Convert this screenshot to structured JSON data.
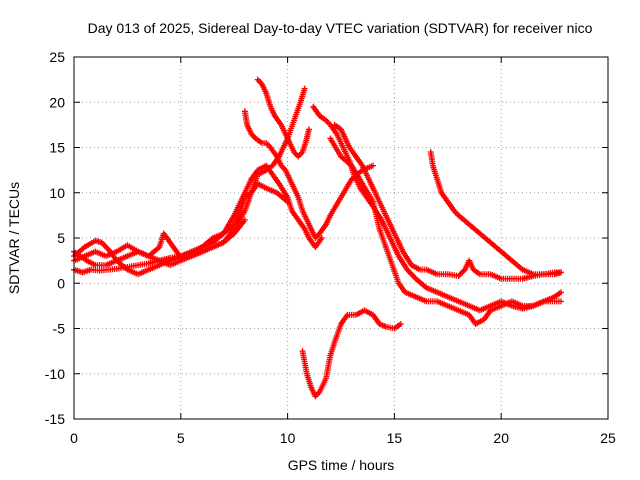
{
  "chart_data": {
    "type": "scatter",
    "title": "Day 013 of 2025, Sidereal Day-to-day VTEC variation (SDTVAR) for receiver nico",
    "xlabel": "GPS time / hours",
    "ylabel": "SDTVAR / TECUs",
    "xlim": [
      0,
      25
    ],
    "ylim": [
      -15,
      25
    ],
    "x_ticks": [
      0,
      5,
      10,
      15,
      20,
      25
    ],
    "y_ticks": [
      -15,
      -10,
      -5,
      0,
      5,
      10,
      15,
      20,
      25
    ],
    "x_tick_labels": [
      "0",
      "5",
      "10",
      "15",
      "20",
      "25"
    ],
    "y_tick_labels": [
      "-15",
      "-10",
      "-5",
      "0",
      "5",
      "10",
      "15",
      "20",
      "25"
    ],
    "grid": true,
    "marker": "plus",
    "color": "#ff0000",
    "series": [
      {
        "name": "s1",
        "points": [
          [
            0,
            3.0
          ],
          [
            0.5,
            4.0
          ],
          [
            1.0,
            4.7
          ],
          [
            1.3,
            4.5
          ],
          [
            1.7,
            3.5
          ],
          [
            2.0,
            2.5
          ],
          [
            2.5,
            1.5
          ],
          [
            3.0,
            1.0
          ],
          [
            3.5,
            1.5
          ],
          [
            4.0,
            2.0
          ],
          [
            4.5,
            2.5
          ],
          [
            5.0,
            3.0
          ],
          [
            5.5,
            3.2
          ],
          [
            6.0,
            4.0
          ],
          [
            6.5,
            5.0
          ],
          [
            7.0,
            5.5
          ],
          [
            7.5,
            6.5
          ],
          [
            7.8,
            8.0
          ],
          [
            8.0,
            9.5
          ],
          [
            8.3,
            10.0
          ],
          [
            8.6,
            12.0
          ],
          [
            9.0,
            12.5
          ],
          [
            9.3,
            13.0
          ],
          [
            9.6,
            14.0
          ],
          [
            10.0,
            16.0
          ],
          [
            10.3,
            18.0
          ],
          [
            10.6,
            20.0
          ],
          [
            10.8,
            21.5
          ]
        ]
      },
      {
        "name": "s2",
        "points": [
          [
            0,
            1.5
          ],
          [
            0.4,
            1.2
          ],
          [
            0.8,
            1.5
          ],
          [
            1.2,
            1.4
          ],
          [
            1.6,
            1.5
          ],
          [
            2.0,
            1.6
          ],
          [
            2.5,
            1.8
          ],
          [
            3.0,
            2.0
          ],
          [
            3.5,
            2.2
          ],
          [
            4.0,
            2.5
          ],
          [
            4.5,
            2.8
          ],
          [
            5.0,
            3.0
          ],
          [
            5.5,
            3.5
          ],
          [
            6.0,
            4.0
          ],
          [
            6.5,
            4.5
          ],
          [
            7.0,
            5.5
          ],
          [
            7.5,
            7.5
          ],
          [
            7.8,
            9.0
          ],
          [
            8.0,
            10.0
          ],
          [
            8.3,
            11.5
          ],
          [
            8.6,
            12.5
          ],
          [
            9.0,
            13.0
          ],
          [
            9.3,
            12.0
          ],
          [
            9.6,
            11.0
          ],
          [
            10.0,
            9.5
          ],
          [
            10.2,
            8.0
          ],
          [
            10.5,
            7.0
          ],
          [
            10.8,
            6.0
          ],
          [
            11.0,
            5.0
          ],
          [
            11.3,
            4.0
          ],
          [
            11.6,
            5.0
          ]
        ]
      },
      {
        "name": "s3",
        "points": [
          [
            8.0,
            19.0
          ],
          [
            8.1,
            17.5
          ],
          [
            8.3,
            16.5
          ],
          [
            8.5,
            16.0
          ],
          [
            8.8,
            15.5
          ],
          [
            9.0,
            15.5
          ],
          [
            9.2,
            15.0
          ],
          [
            9.5,
            14.0
          ],
          [
            9.7,
            13.0
          ],
          [
            9.9,
            12.5
          ],
          [
            10.1,
            11.5
          ],
          [
            10.3,
            10.5
          ],
          [
            10.5,
            9.5
          ],
          [
            10.7,
            8.0
          ],
          [
            10.9,
            7.0
          ],
          [
            11.1,
            6.0
          ],
          [
            11.3,
            5.0
          ],
          [
            11.5,
            5.5
          ],
          [
            11.8,
            6.5
          ],
          [
            12.0,
            7.5
          ],
          [
            12.5,
            9.5
          ],
          [
            13.0,
            11.5
          ],
          [
            13.5,
            12.5
          ],
          [
            14.0,
            13.0
          ]
        ]
      },
      {
        "name": "s4",
        "points": [
          [
            8.6,
            22.5
          ],
          [
            8.8,
            22.0
          ],
          [
            9.0,
            21.0
          ],
          [
            9.2,
            19.5
          ],
          [
            9.4,
            18.5
          ],
          [
            9.7,
            17.5
          ],
          [
            9.9,
            16.5
          ],
          [
            10.1,
            15.5
          ],
          [
            10.3,
            14.5
          ],
          [
            10.5,
            14.0
          ],
          [
            10.7,
            14.5
          ],
          [
            10.9,
            16.0
          ],
          [
            11.0,
            17.0
          ]
        ]
      },
      {
        "name": "s5",
        "points": [
          [
            11.2,
            19.5
          ],
          [
            11.5,
            18.5
          ],
          [
            11.8,
            18.0
          ],
          [
            12.0,
            17.5
          ],
          [
            12.3,
            16.5
          ],
          [
            12.6,
            15.0
          ],
          [
            12.9,
            13.5
          ],
          [
            13.1,
            12.0
          ],
          [
            13.4,
            10.5
          ],
          [
            13.7,
            9.5
          ],
          [
            14.0,
            8.5
          ],
          [
            14.4,
            7.0
          ],
          [
            14.8,
            5.0
          ],
          [
            15.2,
            3.0
          ],
          [
            15.6,
            1.5
          ],
          [
            16.0,
            0.5
          ],
          [
            16.5,
            -0.5
          ],
          [
            17.0,
            -1.0
          ],
          [
            17.5,
            -1.5
          ],
          [
            18.0,
            -2.0
          ],
          [
            18.5,
            -2.5
          ],
          [
            19.0,
            -3.0
          ],
          [
            19.5,
            -2.5
          ],
          [
            20.0,
            -2.0
          ],
          [
            20.5,
            -2.5
          ],
          [
            21.0,
            -2.8
          ],
          [
            21.5,
            -2.5
          ],
          [
            22.0,
            -2.0
          ],
          [
            22.5,
            -1.5
          ],
          [
            22.8,
            -1.0
          ]
        ]
      },
      {
        "name": "s6",
        "points": [
          [
            12.2,
            17.5
          ],
          [
            12.5,
            17.0
          ],
          [
            12.7,
            16.0
          ],
          [
            12.9,
            15.0
          ],
          [
            13.2,
            14.0
          ],
          [
            13.5,
            13.0
          ],
          [
            13.8,
            11.5
          ],
          [
            14.0,
            10.5
          ],
          [
            14.3,
            9.0
          ],
          [
            14.6,
            7.5
          ],
          [
            15.0,
            5.5
          ],
          [
            15.4,
            3.5
          ],
          [
            15.8,
            2.0
          ],
          [
            16.2,
            1.5
          ],
          [
            16.5,
            1.5
          ],
          [
            17.0,
            1.0
          ],
          [
            17.5,
            1.0
          ],
          [
            18.0,
            0.8
          ],
          [
            18.3,
            1.5
          ],
          [
            18.5,
            2.5
          ],
          [
            18.7,
            1.5
          ],
          [
            19.0,
            1.0
          ],
          [
            19.5,
            1.0
          ],
          [
            20.0,
            0.5
          ],
          [
            20.5,
            0.5
          ],
          [
            21.0,
            0.5
          ],
          [
            21.5,
            0.8
          ],
          [
            22.0,
            1.0
          ],
          [
            22.5,
            1.2
          ],
          [
            22.8,
            1.2
          ]
        ]
      },
      {
        "name": "s7",
        "points": [
          [
            12.0,
            16.0
          ],
          [
            12.5,
            14.0
          ],
          [
            13.0,
            13.0
          ],
          [
            13.5,
            11.0
          ],
          [
            14.0,
            9.0
          ],
          [
            14.3,
            6.0
          ],
          [
            14.6,
            4.0
          ],
          [
            14.9,
            2.0
          ],
          [
            15.2,
            0.0
          ],
          [
            15.5,
            -1.0
          ],
          [
            16.0,
            -1.5
          ],
          [
            16.5,
            -2.0
          ],
          [
            17.0,
            -2.0
          ],
          [
            17.5,
            -2.5
          ],
          [
            18.0,
            -3.0
          ],
          [
            18.5,
            -3.5
          ],
          [
            18.8,
            -4.5
          ],
          [
            19.2,
            -4.0
          ],
          [
            19.5,
            -3.0
          ],
          [
            20.0,
            -2.5
          ],
          [
            20.5,
            -2.0
          ],
          [
            21.0,
            -2.5
          ],
          [
            21.5,
            -2.5
          ],
          [
            22.0,
            -2.0
          ],
          [
            22.5,
            -2.0
          ],
          [
            22.8,
            -2.0
          ]
        ]
      },
      {
        "name": "s8",
        "points": [
          [
            16.7,
            14.5
          ],
          [
            16.8,
            13.0
          ],
          [
            17.0,
            11.5
          ],
          [
            17.2,
            10.0
          ],
          [
            17.5,
            9.0
          ],
          [
            17.8,
            8.0
          ],
          [
            18.0,
            7.5
          ],
          [
            18.5,
            6.5
          ],
          [
            19.0,
            5.5
          ],
          [
            19.5,
            4.5
          ],
          [
            20.0,
            3.5
          ],
          [
            20.5,
            2.5
          ],
          [
            21.0,
            1.5
          ],
          [
            21.5,
            1.0
          ],
          [
            22.0,
            1.0
          ],
          [
            22.5,
            1.0
          ],
          [
            22.8,
            1.2
          ]
        ]
      },
      {
        "name": "s9",
        "points": [
          [
            10.7,
            -7.5
          ],
          [
            10.9,
            -10.0
          ],
          [
            11.1,
            -11.5
          ],
          [
            11.3,
            -12.5
          ],
          [
            11.5,
            -12.0
          ],
          [
            11.8,
            -10.5
          ],
          [
            12.0,
            -8.0
          ],
          [
            12.2,
            -6.5
          ],
          [
            12.5,
            -4.5
          ],
          [
            12.8,
            -3.5
          ],
          [
            13.2,
            -3.5
          ],
          [
            13.6,
            -3.0
          ],
          [
            14.0,
            -3.5
          ],
          [
            14.3,
            -4.5
          ],
          [
            14.6,
            -4.8
          ],
          [
            15.0,
            -5.0
          ],
          [
            15.3,
            -4.5
          ]
        ]
      },
      {
        "name": "s10",
        "points": [
          [
            0,
            2.5
          ],
          [
            0.5,
            3.0
          ],
          [
            1.0,
            3.5
          ],
          [
            1.5,
            3.0
          ],
          [
            2.0,
            3.5
          ],
          [
            2.5,
            4.2
          ],
          [
            3.0,
            3.5
          ],
          [
            3.5,
            3.0
          ],
          [
            4.0,
            4.0
          ],
          [
            4.2,
            5.5
          ],
          [
            4.5,
            4.5
          ],
          [
            4.8,
            3.5
          ],
          [
            5.0,
            2.8
          ],
          [
            5.5,
            3.0
          ],
          [
            6.0,
            3.5
          ],
          [
            6.5,
            4.0
          ],
          [
            7.0,
            4.5
          ],
          [
            7.5,
            5.5
          ],
          [
            8.0,
            7.0
          ]
        ]
      },
      {
        "name": "s11",
        "points": [
          [
            0,
            3.5
          ],
          [
            0.3,
            3.0
          ],
          [
            0.6,
            2.5
          ],
          [
            1.0,
            2.0
          ],
          [
            1.5,
            2.0
          ],
          [
            2.0,
            2.5
          ],
          [
            2.5,
            3.0
          ],
          [
            3.0,
            3.5
          ],
          [
            3.5,
            3.0
          ],
          [
            4.0,
            2.5
          ],
          [
            4.5,
            2.0
          ],
          [
            5.0,
            2.5
          ],
          [
            5.5,
            3.0
          ],
          [
            6.0,
            3.5
          ],
          [
            6.5,
            4.0
          ],
          [
            7.0,
            4.5
          ],
          [
            7.5,
            6.0
          ],
          [
            8.0,
            8.0
          ],
          [
            8.3,
            10.0
          ],
          [
            8.6,
            11.0
          ],
          [
            9.0,
            10.5
          ],
          [
            9.5,
            10.0
          ],
          [
            10.0,
            9.0
          ]
        ]
      }
    ]
  }
}
